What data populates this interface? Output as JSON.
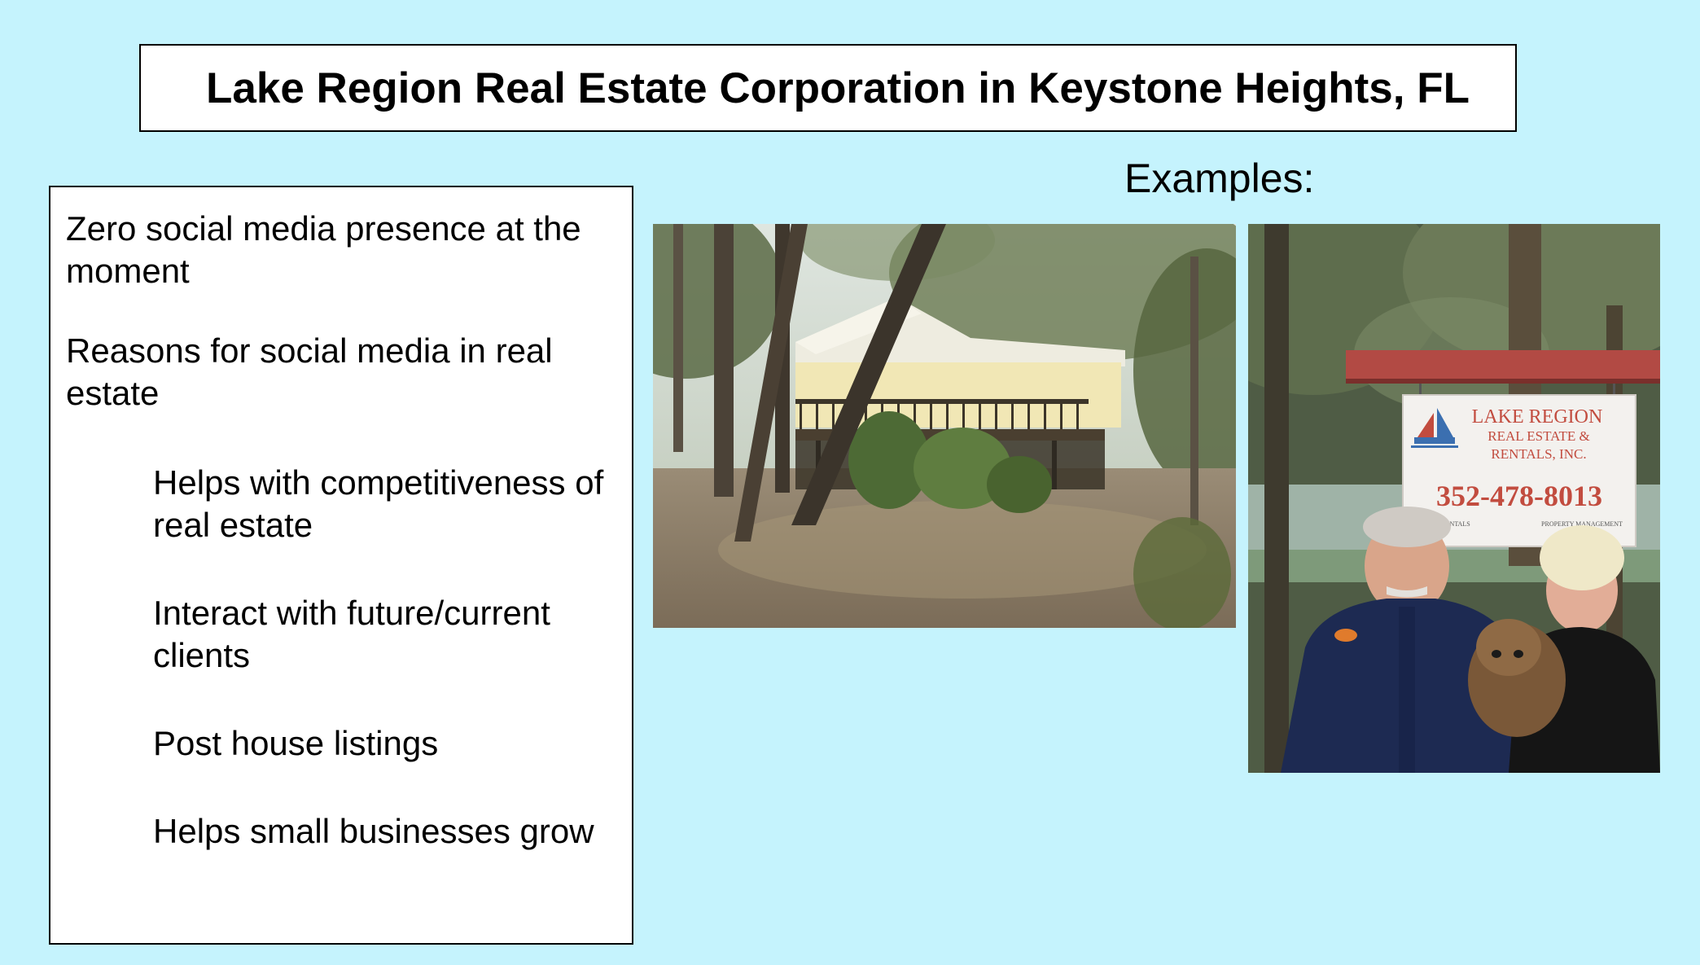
{
  "slide": {
    "title": "Lake Region Real Estate Corporation in Keystone Heights, FL",
    "examples_label": "Examples:",
    "points": [
      "Zero social media presence at the moment",
      "Reasons for social media in real estate"
    ],
    "sub_points": [
      "Helps with competitiveness of real estate",
      "Interact with future/current clients",
      "Post house listings",
      "Helps small businesses grow"
    ]
  },
  "sign": {
    "line1": "LAKE REGION",
    "line2": "REAL ESTATE &",
    "line3": "RENTALS, INC.",
    "phone": "352-478-8013",
    "footer_left": "RENTALS",
    "footer_right": "PROPERTY MANAGEMENT"
  },
  "colors": {
    "background": "#c5f3fd",
    "box_fill": "#ffffff",
    "box_border": "#000000"
  }
}
